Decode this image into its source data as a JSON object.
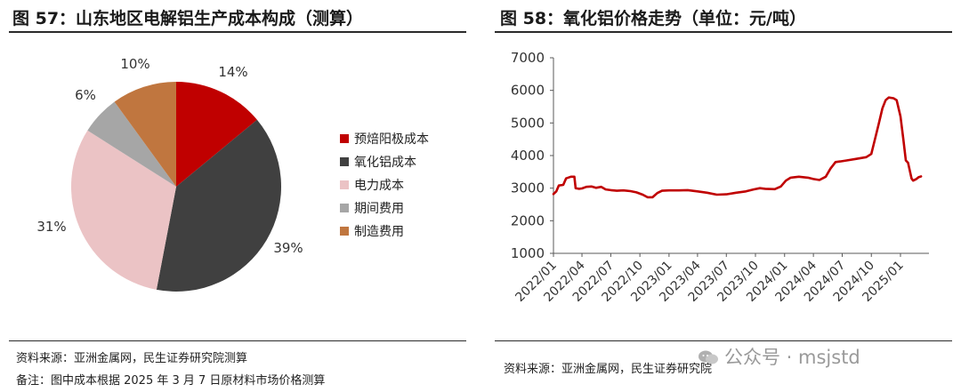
{
  "left_panel": {
    "title": "图 57：山东地区电解铝生产成本构成（测算）",
    "source": "资料来源：亚洲金属网，民生证券研究院测算",
    "note": "备注：图中成本根据 2025 年 3 月 7 日原材料市场价格测算"
  },
  "right_panel": {
    "title": "图 58：氧化铝价格走势（单位：元/吨）",
    "source": "资料来源：亚洲金属网，民生证券研究院"
  },
  "watermark": {
    "text": "公众号 · msjstd",
    "icon": "wechat-icon"
  },
  "chart_data": [
    {
      "type": "pie",
      "title": "图 57：山东地区电解铝生产成本构成（测算）",
      "legend_position": "right",
      "slices": [
        {
          "name": "预焙阳极成本",
          "value": 14,
          "label": "14%",
          "color": "#c00000"
        },
        {
          "name": "氧化铝成本",
          "value": 39,
          "label": "39%",
          "color": "#404040"
        },
        {
          "name": "电力成本",
          "value": 31,
          "label": "31%",
          "color": "#ebc3c5"
        },
        {
          "name": "期间费用",
          "value": 6,
          "label": "6%",
          "color": "#a6a6a6"
        },
        {
          "name": "制造费用",
          "value": 10,
          "label": "10%",
          "color": "#c0763f"
        }
      ]
    },
    {
      "type": "line",
      "title": "图 58：氧化铝价格走势（单位：元/吨）",
      "ylim": [
        1000,
        7000
      ],
      "yticks": [
        1000,
        2000,
        3000,
        4000,
        5000,
        6000,
        7000
      ],
      "xticks": [
        "2022/01",
        "2022/04",
        "2022/07",
        "2022/10",
        "2023/01",
        "2023/04",
        "2023/07",
        "2023/10",
        "2024/01",
        "2024/04",
        "2024/07",
        "2024/10",
        "2025/01"
      ],
      "xlim": [
        "2022/01",
        "2025/04"
      ],
      "grid": false,
      "series": [
        {
          "color": "#c00000",
          "points": [
            [
              "2022/01/01",
              2820
            ],
            [
              "2022/01/10",
              2900
            ],
            [
              "2022/01/18",
              3080
            ],
            [
              "2022/02/01",
              3100
            ],
            [
              "2022/02/10",
              3300
            ],
            [
              "2022/02/25",
              3350
            ],
            [
              "2022/03/08",
              3350
            ],
            [
              "2022/03/12",
              3000
            ],
            [
              "2022/03/22",
              2980
            ],
            [
              "2022/04/01",
              2990
            ],
            [
              "2022/04/15",
              3040
            ],
            [
              "2022/05/01",
              3050
            ],
            [
              "2022/05/15",
              3010
            ],
            [
              "2022/06/01",
              3040
            ],
            [
              "2022/06/15",
              2960
            ],
            [
              "2022/07/01",
              2940
            ],
            [
              "2022/07/20",
              2920
            ],
            [
              "2022/08/10",
              2930
            ],
            [
              "2022/09/01",
              2910
            ],
            [
              "2022/09/20",
              2870
            ],
            [
              "2022/10/10",
              2800
            ],
            [
              "2022/10/25",
              2720
            ],
            [
              "2022/11/10",
              2720
            ],
            [
              "2022/11/25",
              2850
            ],
            [
              "2022/12/10",
              2920
            ],
            [
              "2023/01/01",
              2930
            ],
            [
              "2023/02/01",
              2930
            ],
            [
              "2023/03/01",
              2940
            ],
            [
              "2023/04/01",
              2900
            ],
            [
              "2023/05/01",
              2860
            ],
            [
              "2023/06/01",
              2800
            ],
            [
              "2023/07/01",
              2810
            ],
            [
              "2023/08/01",
              2860
            ],
            [
              "2023/09/01",
              2900
            ],
            [
              "2023/09/25",
              2960
            ],
            [
              "2023/10/15",
              3000
            ],
            [
              "2023/11/01",
              2980
            ],
            [
              "2023/12/01",
              2970
            ],
            [
              "2023/12/20",
              3050
            ],
            [
              "2024/01/05",
              3230
            ],
            [
              "2024/01/20",
              3320
            ],
            [
              "2024/02/15",
              3350
            ],
            [
              "2024/03/15",
              3320
            ],
            [
              "2024/04/01",
              3280
            ],
            [
              "2024/04/20",
              3250
            ],
            [
              "2024/05/10",
              3350
            ],
            [
              "2024/05/25",
              3600
            ],
            [
              "2024/06/10",
              3800
            ],
            [
              "2024/06/25",
              3820
            ],
            [
              "2024/07/15",
              3850
            ],
            [
              "2024/08/15",
              3900
            ],
            [
              "2024/09/15",
              3950
            ],
            [
              "2024/10/01",
              4050
            ],
            [
              "2024/10/15",
              4600
            ],
            [
              "2024/10/25",
              5000
            ],
            [
              "2024/11/05",
              5450
            ],
            [
              "2024/11/15",
              5700
            ],
            [
              "2024/11/25",
              5780
            ],
            [
              "2024/12/10",
              5760
            ],
            [
              "2024/12/20",
              5700
            ],
            [
              "2025/01/01",
              5200
            ],
            [
              "2025/01/10",
              4500
            ],
            [
              "2025/01/18",
              3850
            ],
            [
              "2025/01/25",
              3780
            ],
            [
              "2025/02/05",
              3300
            ],
            [
              "2025/02/10",
              3230
            ],
            [
              "2025/02/20",
              3280
            ],
            [
              "2025/02/28",
              3340
            ],
            [
              "2025/03/07",
              3360
            ]
          ]
        }
      ]
    }
  ]
}
